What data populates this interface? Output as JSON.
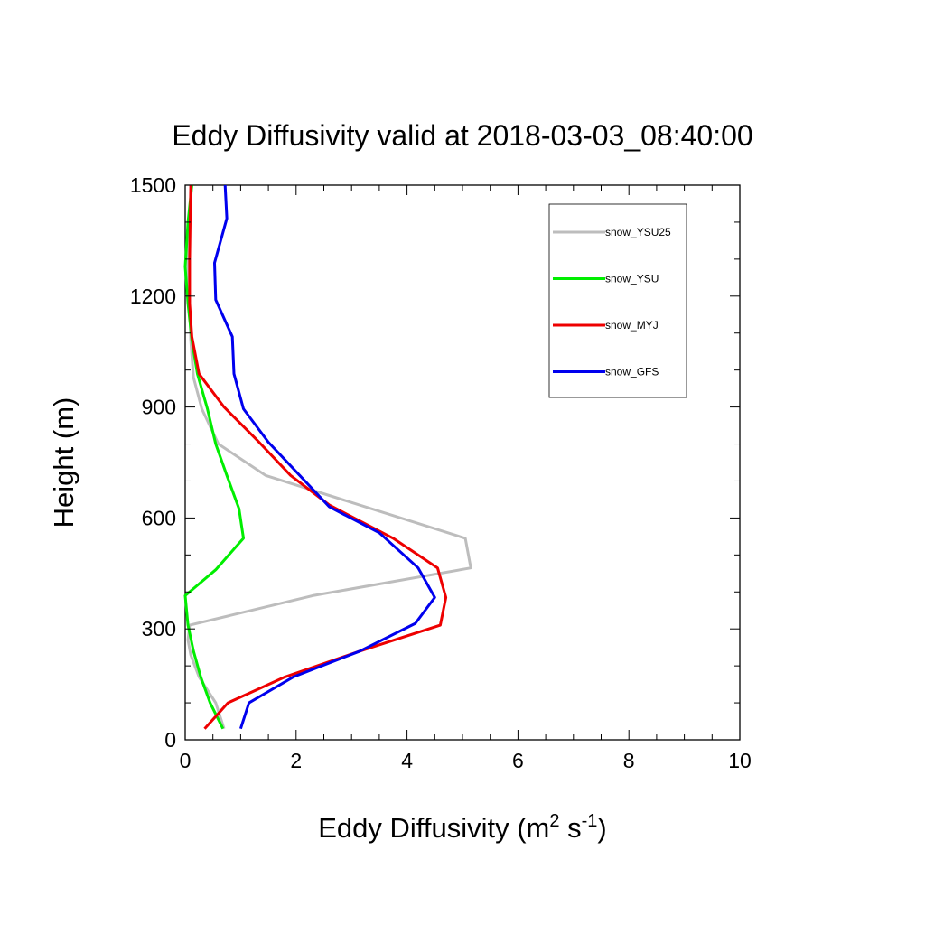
{
  "chart_data": {
    "type": "line",
    "title": "Eddy Diffusivity valid at 2018-03-03_08:40:00",
    "xlabel": {
      "base": "Eddy Diffusivity (m",
      "sup1": "2",
      "mid": " s",
      "sup2": "-1",
      "end": ")"
    },
    "ylabel": "Height (m)",
    "xlim": [
      0,
      10
    ],
    "ylim": [
      0,
      1500
    ],
    "xticks": [
      0,
      2,
      4,
      6,
      8,
      10
    ],
    "xtick_labels": [
      "0",
      "2",
      "4",
      "6",
      "8",
      "10"
    ],
    "yticks": [
      0,
      300,
      600,
      900,
      1200,
      1500
    ],
    "ytick_labels": [
      "0",
      "300",
      "600",
      "900",
      "1200",
      "1500"
    ],
    "grid": false,
    "legend_position": "top-right",
    "series": [
      {
        "name": "snow_YSU25",
        "color": "#bdbdbd",
        "points": [
          [
            0.7,
            30
          ],
          [
            0.55,
            100
          ],
          [
            0.25,
            170
          ],
          [
            0.1,
            230
          ],
          [
            0.05,
            270
          ],
          [
            0.08,
            310
          ],
          [
            2.3,
            390
          ],
          [
            5.15,
            465
          ],
          [
            5.05,
            545
          ],
          [
            1.45,
            715
          ],
          [
            0.6,
            800
          ],
          [
            0.3,
            895
          ],
          [
            0.15,
            980
          ],
          [
            0.1,
            1080
          ],
          [
            0.08,
            1180
          ],
          [
            0.05,
            1280
          ],
          [
            0.06,
            1390
          ],
          [
            0.12,
            1500
          ]
        ]
      },
      {
        "name": "snow_YSU",
        "color": "#00ee00",
        "points": [
          [
            0.68,
            30
          ],
          [
            0.45,
            100
          ],
          [
            0.28,
            170
          ],
          [
            0.15,
            240
          ],
          [
            0.05,
            310
          ],
          [
            0.0,
            390
          ],
          [
            0.55,
            460
          ],
          [
            1.05,
            545
          ],
          [
            0.97,
            625
          ],
          [
            0.75,
            715
          ],
          [
            0.55,
            800
          ],
          [
            0.4,
            895
          ],
          [
            0.22,
            990
          ],
          [
            0.12,
            1080
          ],
          [
            0.05,
            1180
          ],
          [
            0.0,
            1280
          ],
          [
            0.05,
            1400
          ],
          [
            0.12,
            1500
          ]
        ]
      },
      {
        "name": "snow_MYJ",
        "color": "#ee0000",
        "points": [
          [
            0.35,
            30
          ],
          [
            0.77,
            100
          ],
          [
            1.8,
            170
          ],
          [
            3.15,
            240
          ],
          [
            4.6,
            310
          ],
          [
            4.7,
            385
          ],
          [
            4.55,
            465
          ],
          [
            3.75,
            545
          ],
          [
            2.6,
            635
          ],
          [
            1.9,
            715
          ],
          [
            1.3,
            810
          ],
          [
            0.7,
            900
          ],
          [
            0.25,
            990
          ],
          [
            0.12,
            1090
          ],
          [
            0.08,
            1180
          ],
          [
            0.08,
            1300
          ],
          [
            0.1,
            1500
          ]
        ]
      },
      {
        "name": "snow_GFS",
        "color": "#0000ee",
        "points": [
          [
            1.0,
            30
          ],
          [
            1.15,
            100
          ],
          [
            1.95,
            170
          ],
          [
            3.15,
            240
          ],
          [
            4.15,
            315
          ],
          [
            4.5,
            385
          ],
          [
            4.2,
            465
          ],
          [
            3.5,
            560
          ],
          [
            2.6,
            630
          ],
          [
            1.5,
            805
          ],
          [
            1.05,
            895
          ],
          [
            0.88,
            990
          ],
          [
            0.85,
            1090
          ],
          [
            0.55,
            1190
          ],
          [
            0.53,
            1290
          ],
          [
            0.75,
            1410
          ],
          [
            0.72,
            1500
          ]
        ]
      }
    ]
  }
}
